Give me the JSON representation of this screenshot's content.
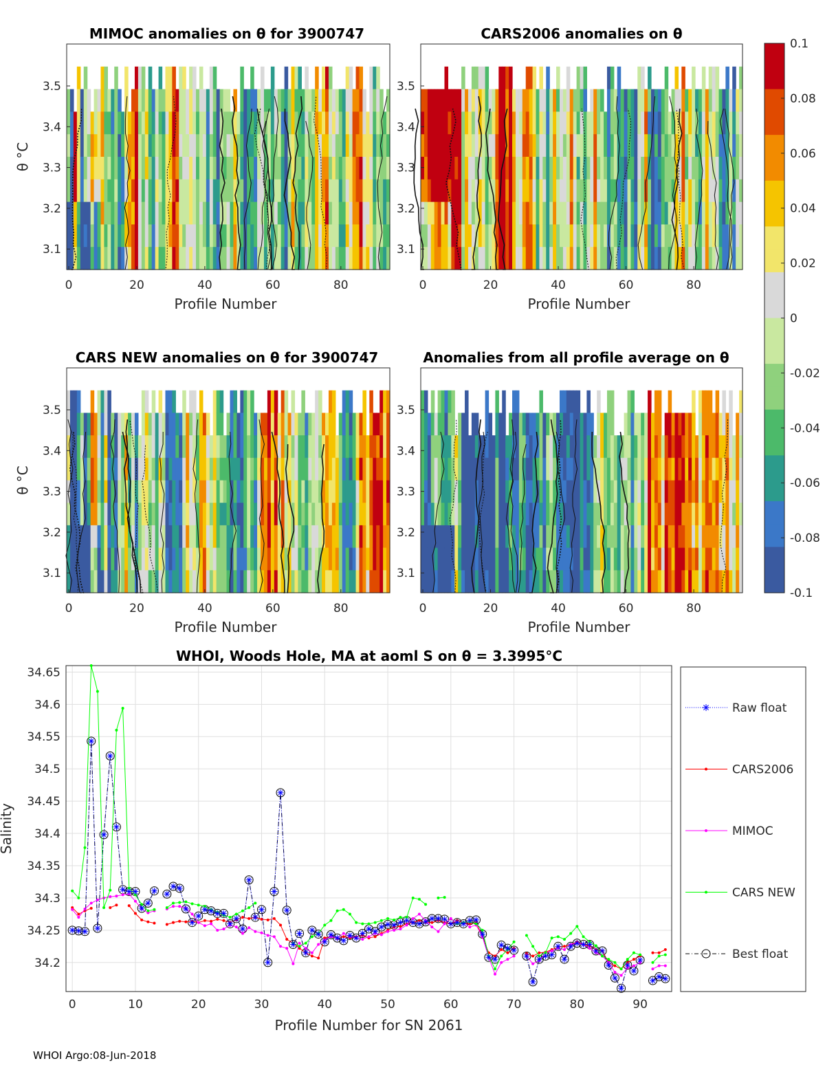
{
  "footer": "WHOI Argo:08-Jun-2018",
  "colorbar": {
    "min": -0.1,
    "max": 0.1,
    "tick_labels": [
      "0.1",
      "0.08",
      "0.06",
      "0.04",
      "0.02",
      "0",
      "-0.02",
      "-0.04",
      "-0.06",
      "-0.08",
      "-0.1"
    ],
    "colors": [
      "#3a5aa0",
      "#3b78c8",
      "#2c9b8c",
      "#4cba6a",
      "#8fd17d",
      "#c9e8a0",
      "#d9d9d9",
      "#f2e56a",
      "#f5c400",
      "#f28b00",
      "#e04a00",
      "#c00010"
    ]
  },
  "panels": [
    {
      "title": "MIMOC anomalies on θ  for 3900747",
      "xlabel": "Profile Number",
      "ylabel": "θ °C",
      "xticks": [
        "0",
        "20",
        "40",
        "60",
        "80"
      ],
      "yticks": [
        "3.5",
        "3.4",
        "3.3",
        "3.2",
        "3.1"
      ],
      "seed": 11,
      "trend": 0.0
    },
    {
      "title": "CARS2006 anomalies on θ",
      "xlabel": "Profile Number",
      "ylabel": "",
      "xticks": [
        "0",
        "20",
        "40",
        "60",
        "80"
      ],
      "yticks": [
        "3.5",
        "3.4",
        "3.3",
        "3.2",
        "3.1"
      ],
      "seed": 23,
      "trend": 0.03
    },
    {
      "title": "CARS NEW anomalies on θ for 3900747",
      "xlabel": "Profile Number",
      "ylabel": "θ °C",
      "xticks": [
        "0",
        "20",
        "40",
        "60",
        "80"
      ],
      "yticks": [
        "3.5",
        "3.4",
        "3.3",
        "3.2",
        "3.1"
      ],
      "seed": 37,
      "trend": -0.015
    },
    {
      "title": "Anomalies from all profile average on θ",
      "xlabel": "Profile Number",
      "ylabel": "",
      "xticks": [
        "0",
        "20",
        "40",
        "60",
        "80"
      ],
      "yticks": [
        "3.5",
        "3.4",
        "3.3",
        "3.2",
        "3.1"
      ],
      "seed": 53,
      "trend": -0.04
    }
  ],
  "chart_data": {
    "type": "line",
    "title": "WHOI, Woods Hole, MA at aoml S on θ = 3.3995°C",
    "xlabel": "Profile Number for SN 2061",
    "ylabel": "Salinity",
    "xlim": [
      -1,
      95
    ],
    "ylim": [
      34.155,
      34.66
    ],
    "xticks": [
      0,
      10,
      20,
      30,
      40,
      50,
      60,
      70,
      80,
      90
    ],
    "yticks": [
      34.2,
      34.25,
      34.3,
      34.35,
      34.4,
      34.45,
      34.5,
      34.55,
      34.6,
      34.65
    ],
    "ytick_labels": [
      "34.2",
      "34.25",
      "34.3",
      "34.35",
      "34.4",
      "34.45",
      "34.5",
      "34.55",
      "34.6",
      "34.65"
    ],
    "legend": [
      "Raw float",
      "CARS2006",
      "MIMOC",
      "CARS NEW",
      "Best float"
    ],
    "x": [
      0,
      1,
      2,
      3,
      4,
      5,
      6,
      7,
      8,
      9,
      10,
      11,
      12,
      13,
      14,
      15,
      16,
      17,
      18,
      19,
      20,
      21,
      22,
      23,
      24,
      25,
      26,
      27,
      28,
      29,
      30,
      31,
      32,
      33,
      34,
      35,
      36,
      37,
      38,
      39,
      40,
      41,
      42,
      43,
      44,
      45,
      46,
      47,
      48,
      49,
      50,
      51,
      52,
      53,
      54,
      55,
      56,
      57,
      58,
      59,
      60,
      61,
      62,
      63,
      64,
      65,
      66,
      67,
      68,
      69,
      70,
      71,
      72,
      73,
      74,
      75,
      76,
      77,
      78,
      79,
      80,
      81,
      82,
      83,
      84,
      85,
      86,
      87,
      88,
      89,
      90,
      91,
      92,
      93,
      94
    ],
    "series": [
      {
        "name": "Best float",
        "color": "#000000",
        "values": [
          34.25,
          34.249,
          34.248,
          34.543,
          34.253,
          34.398,
          34.52,
          34.41,
          34.313,
          34.31,
          34.31,
          34.284,
          34.292,
          34.311,
          null,
          34.306,
          34.318,
          34.315,
          34.283,
          34.262,
          34.272,
          34.282,
          34.28,
          34.276,
          34.276,
          34.26,
          34.268,
          34.252,
          34.328,
          34.27,
          34.282,
          34.2,
          34.31,
          34.463,
          34.281,
          34.228,
          34.245,
          34.215,
          34.25,
          34.244,
          34.232,
          34.243,
          34.238,
          34.234,
          34.242,
          34.238,
          34.245,
          34.252,
          34.248,
          34.255,
          34.259,
          34.258,
          34.262,
          34.265,
          34.262,
          34.26,
          34.263,
          34.268,
          34.268,
          34.267,
          34.26,
          34.262,
          34.26,
          34.265,
          34.266,
          34.244,
          34.208,
          34.205,
          34.227,
          34.222,
          34.219,
          null,
          34.21,
          34.17,
          34.205,
          34.21,
          34.212,
          34.225,
          34.205,
          34.225,
          34.23,
          34.228,
          34.228,
          34.218,
          34.218,
          34.196,
          34.176,
          34.16,
          34.196,
          34.187,
          34.204,
          null,
          34.172,
          34.178,
          34.175
        ]
      },
      {
        "name": "CARS2006",
        "color": "#ff0000",
        "values": [
          34.285,
          34.275,
          34.28,
          34.284,
          null,
          null,
          34.285,
          34.289,
          null,
          34.288,
          34.276,
          34.266,
          34.263,
          34.261,
          null,
          34.259,
          34.262,
          34.264,
          34.263,
          34.264,
          34.262,
          34.265,
          34.264,
          34.267,
          34.265,
          34.262,
          34.266,
          34.27,
          34.268,
          34.27,
          34.267,
          34.266,
          34.268,
          34.258,
          34.236,
          34.23,
          34.222,
          34.215,
          34.21,
          34.207,
          34.238,
          34.24,
          34.237,
          34.24,
          34.238,
          34.24,
          34.242,
          34.238,
          34.24,
          34.245,
          34.25,
          34.255,
          34.256,
          34.26,
          34.262,
          34.265,
          34.262,
          34.262,
          34.265,
          34.262,
          34.26,
          34.265,
          34.262,
          34.26,
          34.262,
          34.24,
          34.215,
          34.21,
          34.22,
          34.215,
          34.222,
          null,
          34.214,
          34.21,
          34.215,
          34.216,
          34.22,
          34.224,
          34.225,
          34.228,
          34.232,
          34.228,
          34.226,
          34.22,
          34.218,
          34.2,
          34.195,
          34.19,
          34.2,
          34.205,
          34.21,
          null,
          34.215,
          34.215,
          34.22
        ]
      },
      {
        "name": "MIMOC",
        "color": "#ff00ff",
        "values": [
          34.282,
          34.27,
          34.283,
          34.292,
          34.297,
          34.3,
          34.302,
          34.303,
          34.305,
          34.306,
          34.295,
          34.283,
          34.277,
          34.28,
          null,
          34.283,
          34.287,
          34.287,
          34.284,
          34.275,
          34.262,
          34.257,
          34.26,
          34.25,
          34.252,
          34.258,
          34.255,
          34.245,
          34.254,
          34.248,
          34.246,
          34.242,
          34.24,
          34.225,
          34.222,
          34.198,
          34.23,
          34.222,
          34.215,
          34.228,
          34.235,
          34.24,
          34.238,
          34.245,
          34.24,
          34.238,
          34.236,
          34.24,
          34.245,
          34.243,
          34.248,
          34.25,
          34.252,
          34.258,
          34.268,
          34.275,
          34.265,
          34.255,
          34.248,
          34.26,
          34.268,
          34.26,
          34.262,
          34.255,
          34.258,
          34.24,
          34.208,
          34.182,
          34.2,
          34.205,
          34.21,
          null,
          34.21,
          34.198,
          34.203,
          34.215,
          34.218,
          34.222,
          34.22,
          34.228,
          34.23,
          34.228,
          34.222,
          34.215,
          34.21,
          34.2,
          34.185,
          34.18,
          34.192,
          34.195,
          34.2,
          null,
          34.19,
          34.195,
          34.195
        ]
      },
      {
        "name": "CARS NEW",
        "color": "#00ff00",
        "values": [
          34.311,
          34.3,
          34.378,
          34.66,
          34.62,
          34.285,
          34.312,
          34.56,
          34.594,
          34.315,
          34.305,
          34.29,
          34.28,
          34.282,
          null,
          34.285,
          34.292,
          34.293,
          34.294,
          34.291,
          34.289,
          34.287,
          34.282,
          34.278,
          34.273,
          34.27,
          34.275,
          34.28,
          34.285,
          34.292,
          null,
          null,
          null,
          null,
          null,
          34.23,
          34.225,
          34.23,
          34.24,
          34.245,
          34.258,
          34.265,
          34.28,
          34.282,
          34.275,
          34.262,
          34.26,
          34.26,
          34.262,
          34.265,
          34.268,
          34.266,
          34.27,
          34.27,
          34.3,
          34.298,
          34.29,
          null,
          34.3,
          34.301,
          null,
          34.26,
          34.262,
          34.263,
          34.26,
          34.25,
          34.21,
          34.19,
          34.21,
          34.22,
          34.232,
          null,
          34.242,
          34.225,
          34.21,
          34.215,
          34.238,
          34.24,
          34.236,
          34.245,
          34.256,
          34.24,
          34.232,
          34.226,
          34.21,
          34.205,
          34.2,
          34.19,
          34.205,
          34.215,
          34.212,
          null,
          34.2,
          34.21,
          34.212
        ]
      },
      {
        "name": "Raw float",
        "color": "#0000ff",
        "values": [
          34.25,
          34.249,
          34.248,
          34.543,
          34.253,
          34.398,
          34.52,
          34.41,
          34.313,
          34.31,
          34.31,
          34.284,
          34.292,
          34.311,
          null,
          34.306,
          34.318,
          34.315,
          34.283,
          34.262,
          34.272,
          34.282,
          34.28,
          34.276,
          34.276,
          34.26,
          34.268,
          34.252,
          34.328,
          34.27,
          34.282,
          34.2,
          34.31,
          34.463,
          34.281,
          34.228,
          34.245,
          34.215,
          34.25,
          34.244,
          34.232,
          34.243,
          34.238,
          34.234,
          34.242,
          34.238,
          34.245,
          34.252,
          34.248,
          34.255,
          34.259,
          34.258,
          34.262,
          34.265,
          34.262,
          34.26,
          34.263,
          34.268,
          34.268,
          34.267,
          34.26,
          34.262,
          34.26,
          34.265,
          34.266,
          34.244,
          34.208,
          34.205,
          34.227,
          34.222,
          34.219,
          null,
          34.21,
          34.17,
          34.205,
          34.21,
          34.212,
          34.225,
          34.205,
          34.225,
          34.23,
          34.228,
          34.228,
          34.218,
          34.218,
          34.196,
          34.176,
          34.16,
          34.196,
          34.187,
          34.204,
          null,
          34.172,
          34.178,
          34.175
        ]
      }
    ]
  }
}
